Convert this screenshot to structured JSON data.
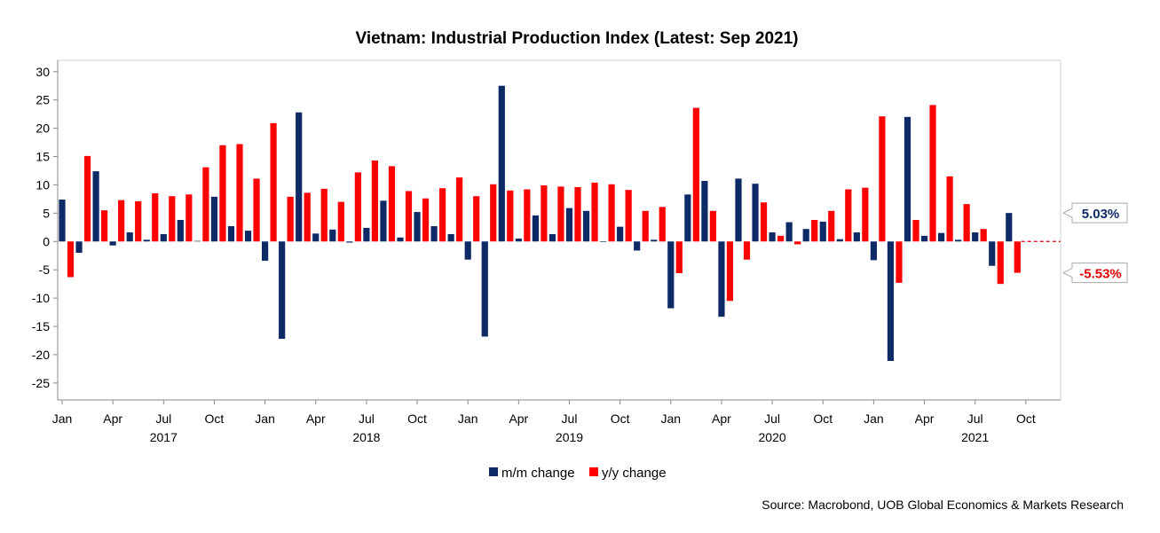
{
  "chart_data": {
    "type": "bar",
    "title": "Vietnam: Industrial Production Index (Latest: Sep 2021)",
    "ylim": [
      -28,
      32
    ],
    "yticks": [
      30,
      25,
      20,
      15,
      10,
      5,
      0,
      -5,
      -10,
      -15,
      -20,
      -25
    ],
    "months": [
      "2017-01",
      "2017-02",
      "2017-03",
      "2017-04",
      "2017-05",
      "2017-06",
      "2017-07",
      "2017-08",
      "2017-09",
      "2017-10",
      "2017-11",
      "2017-12",
      "2018-01",
      "2018-02",
      "2018-03",
      "2018-04",
      "2018-05",
      "2018-06",
      "2018-07",
      "2018-08",
      "2018-09",
      "2018-10",
      "2018-11",
      "2018-12",
      "2019-01",
      "2019-02",
      "2019-03",
      "2019-04",
      "2019-05",
      "2019-06",
      "2019-07",
      "2019-08",
      "2019-09",
      "2019-10",
      "2019-11",
      "2019-12",
      "2020-01",
      "2020-02",
      "2020-03",
      "2020-04",
      "2020-05",
      "2020-06",
      "2020-07",
      "2020-08",
      "2020-09",
      "2020-10",
      "2020-11",
      "2020-12",
      "2021-01",
      "2021-02",
      "2021-03",
      "2021-04",
      "2021-05",
      "2021-06",
      "2021-07",
      "2021-08",
      "2021-09"
    ],
    "month_labels": [
      "Jan",
      "Apr",
      "Jul",
      "Oct",
      "Jan",
      "Apr",
      "Jul",
      "Oct",
      "Jan",
      "Apr",
      "Jul",
      "Oct",
      "Jan",
      "Apr",
      "Jul",
      "Oct",
      "Jan",
      "Apr",
      "Jul",
      "Oct"
    ],
    "year_labels": [
      "2017",
      "2018",
      "2019",
      "2020",
      "2021"
    ],
    "series": [
      {
        "name": "m/m change",
        "color": "#0d2a66",
        "values": [
          7.4,
          -2.0,
          12.4,
          -0.7,
          1.6,
          0.3,
          1.3,
          3.8,
          0.1,
          7.9,
          2.7,
          1.9,
          -3.4,
          -17.2,
          22.8,
          1.4,
          2.1,
          -0.2,
          2.4,
          7.2,
          0.7,
          5.2,
          2.7,
          1.3,
          -3.2,
          -16.8,
          27.5,
          0.5,
          4.6,
          1.3,
          5.9,
          5.4,
          -0.1,
          2.6,
          -1.6,
          0.3,
          -11.8,
          8.3,
          10.7,
          -13.3,
          11.1,
          10.2,
          1.6,
          3.4,
          2.2,
          3.5,
          0.4,
          1.6,
          -3.3,
          -21.1,
          22.0,
          1.0,
          1.5,
          0.3,
          1.6,
          -4.3,
          5.03
        ]
      },
      {
        "name": "y/y change",
        "color": "#ff0000",
        "values": [
          -6.3,
          15.1,
          5.5,
          7.3,
          7.1,
          8.5,
          8.0,
          8.3,
          13.1,
          17.0,
          17.2,
          11.1,
          20.9,
          7.9,
          8.6,
          9.3,
          7.0,
          12.2,
          14.3,
          13.3,
          8.9,
          7.6,
          9.4,
          11.3,
          8.0,
          10.1,
          9.0,
          9.2,
          9.9,
          9.7,
          9.6,
          10.4,
          10.1,
          9.1,
          5.4,
          6.1,
          -5.6,
          23.6,
          5.4,
          -10.5,
          -3.2,
          6.9,
          1.0,
          -0.5,
          3.8,
          5.4,
          9.2,
          9.5,
          22.1,
          -7.3,
          3.8,
          24.1,
          11.5,
          6.6,
          2.2,
          -7.5,
          -5.53
        ]
      }
    ],
    "reference_line": 0,
    "callouts": [
      {
        "series": "m/m change",
        "label": "5.03%",
        "value": 5.03,
        "color": "#0d2a66"
      },
      {
        "series": "y/y change",
        "label": "-5.53%",
        "value": -5.53,
        "color": "#e00000"
      }
    ],
    "legend": "bottom-center",
    "source": "Source: Macrobond, UOB Global Economics & Markets Research"
  }
}
